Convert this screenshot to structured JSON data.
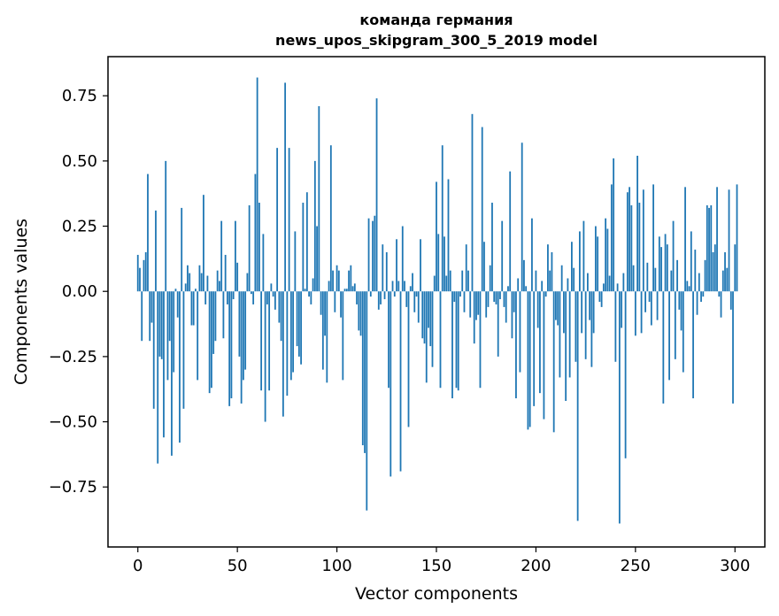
{
  "chart_data": {
    "type": "bar",
    "title": "команда германия",
    "subtitle": "news_upos_skipgram_300_5_2019 model",
    "xlabel": "Vector components",
    "ylabel": "Components values",
    "xlim": [
      -15,
      315
    ],
    "ylim": [
      -0.98,
      0.9
    ],
    "xticks": [
      0,
      50,
      100,
      150,
      200,
      250,
      300
    ],
    "xtick_labels": [
      "0",
      "50",
      "100",
      "150",
      "200",
      "250",
      "300"
    ],
    "yticks": [
      -0.75,
      -0.5,
      -0.25,
      0.0,
      0.25,
      0.5,
      0.75
    ],
    "ytick_labels": [
      "−0.75",
      "−0.50",
      "−0.25",
      "0.00",
      "0.25",
      "0.50",
      "0.75"
    ],
    "color": "#1f77b4",
    "grid": false,
    "x_start": 0,
    "values": [
      0.14,
      0.09,
      -0.19,
      0.12,
      0.15,
      0.45,
      -0.19,
      -0.12,
      -0.45,
      0.31,
      -0.66,
      -0.25,
      -0.26,
      -0.56,
      0.5,
      -0.34,
      -0.19,
      -0.63,
      -0.31,
      0.01,
      -0.1,
      -0.58,
      0.32,
      -0.45,
      0.03,
      0.1,
      0.07,
      -0.13,
      -0.13,
      0.01,
      -0.34,
      0.1,
      0.07,
      0.37,
      -0.05,
      0.06,
      -0.39,
      -0.37,
      -0.24,
      -0.19,
      0.08,
      0.04,
      0.27,
      -0.18,
      0.14,
      -0.05,
      -0.44,
      -0.41,
      -0.03,
      0.27,
      0.11,
      -0.25,
      -0.43,
      -0.34,
      -0.3,
      0.07,
      0.33,
      -0.01,
      -0.05,
      0.45,
      0.82,
      0.34,
      -0.38,
      0.22,
      -0.5,
      -0.05,
      -0.38,
      0.03,
      -0.02,
      -0.07,
      0.55,
      -0.12,
      -0.19,
      -0.48,
      0.8,
      -0.4,
      0.55,
      -0.34,
      -0.31,
      0.23,
      -0.21,
      -0.25,
      -0.28,
      0.34,
      0.01,
      0.38,
      -0.02,
      -0.05,
      0.05,
      0.5,
      0.25,
      0.71,
      -0.09,
      -0.3,
      -0.17,
      -0.35,
      0.04,
      0.56,
      0.08,
      -0.08,
      0.1,
      0.08,
      -0.1,
      -0.34,
      0.01,
      0.01,
      0.08,
      0.1,
      0.02,
      0.03,
      -0.05,
      -0.15,
      -0.17,
      -0.59,
      -0.62,
      -0.84,
      0.28,
      -0.02,
      0.27,
      0.29,
      0.74,
      -0.07,
      -0.05,
      0.18,
      -0.03,
      0.15,
      -0.37,
      -0.71,
      0.04,
      -0.02,
      0.2,
      0.04,
      -0.69,
      0.25,
      0.04,
      -0.06,
      -0.52,
      0.02,
      0.07,
      -0.08,
      -0.02,
      -0.12,
      0.2,
      -0.18,
      -0.2,
      -0.35,
      -0.14,
      -0.21,
      -0.29,
      0.06,
      0.42,
      0.22,
      -0.37,
      0.56,
      0.21,
      0.06,
      0.43,
      0.08,
      -0.41,
      -0.04,
      -0.37,
      -0.38,
      -0.02,
      0.08,
      -0.08,
      0.18,
      0.08,
      -0.1,
      0.68,
      -0.2,
      -0.11,
      -0.09,
      -0.37,
      0.63,
      0.19,
      -0.1,
      -0.06,
      0.1,
      0.34,
      -0.04,
      -0.05,
      -0.25,
      -0.03,
      0.27,
      -0.06,
      -0.12,
      0.02,
      0.46,
      -0.18,
      -0.08,
      -0.41,
      0.05,
      -0.31,
      0.57,
      0.12,
      0.02,
      -0.53,
      -0.52,
      0.28,
      -0.44,
      0.08,
      -0.14,
      -0.39,
      0.04,
      -0.49,
      -0.02,
      0.18,
      0.08,
      0.15,
      -0.54,
      -0.11,
      -0.13,
      -0.33,
      0.1,
      -0.16,
      -0.42,
      0.05,
      -0.33,
      0.19,
      0.09,
      -0.27,
      -0.88,
      0.23,
      -0.16,
      0.27,
      -0.26,
      0.07,
      -0.11,
      -0.29,
      -0.16,
      0.25,
      0.21,
      -0.04,
      -0.06,
      0.03,
      0.28,
      0.24,
      0.06,
      0.41,
      0.51,
      -0.27,
      0.03,
      -0.89,
      -0.14,
      0.07,
      -0.64,
      0.38,
      0.4,
      0.33,
      0.1,
      -0.17,
      0.52,
      0.34,
      -0.16,
      0.39,
      -0.08,
      0.11,
      -0.04,
      -0.13,
      0.41,
      0.09,
      -0.11,
      0.21,
      0.17,
      -0.43,
      0.22,
      0.18,
      -0.34,
      0.08,
      0.27,
      -0.26,
      0.12,
      -0.07,
      -0.15,
      -0.31,
      0.4,
      0.04,
      0.02,
      0.23,
      -0.41,
      0.16,
      -0.09,
      0.07,
      -0.04,
      -0.02,
      0.12,
      0.33,
      0.32,
      0.33,
      0.15,
      0.18,
      0.4,
      -0.02,
      -0.1,
      0.08,
      0.15,
      0.09,
      0.39,
      -0.07,
      -0.43,
      0.18,
      0.41
    ]
  }
}
